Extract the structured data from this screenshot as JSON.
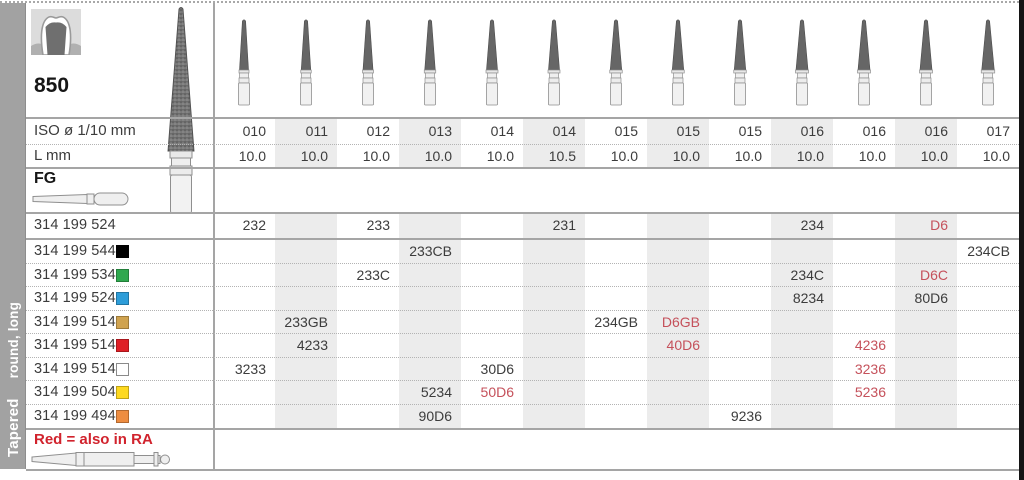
{
  "product": {
    "number": "850"
  },
  "sidebar": {
    "category": "Tapered",
    "subcategory": "round, long"
  },
  "labels": {
    "iso": "ISO ø 1/10 mm",
    "length": "L mm",
    "shank": "FG"
  },
  "columns": [
    {
      "iso": "010",
      "l": "10.0",
      "shaded": false
    },
    {
      "iso": "011",
      "l": "10.0",
      "shaded": true
    },
    {
      "iso": "012",
      "l": "10.0",
      "shaded": false
    },
    {
      "iso": "013",
      "l": "10.0",
      "shaded": true
    },
    {
      "iso": "014",
      "l": "10.0",
      "shaded": false
    },
    {
      "iso": "014",
      "l": "10.5",
      "shaded": true
    },
    {
      "iso": "015",
      "l": "10.0",
      "shaded": false
    },
    {
      "iso": "015",
      "l": "10.0",
      "shaded": true
    },
    {
      "iso": "015",
      "l": "10.0",
      "shaded": false
    },
    {
      "iso": "016",
      "l": "10.0",
      "shaded": true
    },
    {
      "iso": "016",
      "l": "10.0",
      "shaded": false
    },
    {
      "iso": "016",
      "l": "10.0",
      "shaded": true
    },
    {
      "iso": "017",
      "l": "10.0",
      "shaded": false
    }
  ],
  "rows": [
    {
      "code": "314 199 524",
      "chip": null,
      "cells": [
        {
          "col": 1,
          "text": "232"
        },
        {
          "col": 3,
          "text": "233"
        },
        {
          "col": 6,
          "text": "231"
        },
        {
          "col": 10,
          "text": "234"
        },
        {
          "col": 12,
          "text": "D6",
          "red": true
        }
      ]
    },
    {
      "code": "314 199 544",
      "chip": "#000000",
      "cells": [
        {
          "col": 4,
          "text": "233CB"
        },
        {
          "col": 13,
          "text": "234CB"
        }
      ]
    },
    {
      "code": "314 199 534",
      "chip": "#2fa84e",
      "cells": [
        {
          "col": 3,
          "text": "233C"
        },
        {
          "col": 10,
          "text": "234C"
        },
        {
          "col": 12,
          "text": "D6C",
          "red": true
        }
      ]
    },
    {
      "code": "314 199 524",
      "chip": "#2d9dd9",
      "cells": [
        {
          "col": 10,
          "text": "8234"
        },
        {
          "col": 12,
          "text": "80D6"
        }
      ]
    },
    {
      "code": "314 199 514",
      "chip": "#d0a34f",
      "cells": [
        {
          "col": 2,
          "text": "233GB"
        },
        {
          "col": 7,
          "text": "234GB"
        },
        {
          "col": 8,
          "text": "D6GB",
          "red": true
        }
      ]
    },
    {
      "code": "314 199 514",
      "chip": "#df1f26",
      "cells": [
        {
          "col": 2,
          "text": "4233"
        },
        {
          "col": 8,
          "text": "40D6",
          "red": true
        },
        {
          "col": 11,
          "text": "4236",
          "red": true
        }
      ]
    },
    {
      "code": "314 199 514",
      "chip": "#ffffff",
      "cells": [
        {
          "col": 1,
          "text": "3233"
        },
        {
          "col": 5,
          "text": "30D6"
        },
        {
          "col": 11,
          "text": "3236",
          "red": true
        }
      ]
    },
    {
      "code": "314 199 504",
      "chip": "#fed91f",
      "cells": [
        {
          "col": 4,
          "text": "5234"
        },
        {
          "col": 5,
          "text": "50D6",
          "red": true
        },
        {
          "col": 11,
          "text": "5236",
          "red": true
        }
      ]
    },
    {
      "code": "314 199 494",
      "chip": "#ee8d41",
      "cells": [
        {
          "col": 4,
          "text": "90D6"
        },
        {
          "col": 9,
          "text": "9236"
        }
      ]
    }
  ],
  "footer": {
    "note": "Red = also in RA"
  },
  "icons": {
    "tooth": "crown-prep-icon",
    "large_bur": "tapered-diamond-bur-icon",
    "column_bur": "tapered-bur-icon",
    "fg_shank": "fg-shank-icon",
    "ra_shank": "ra-shank-icon"
  },
  "colors": {
    "red_value": "#c5515b",
    "note_red": "#d1232d",
    "band": "#ececec",
    "line": "#a5a5a5",
    "sidebar_bg": "#a2a2a2",
    "text": "#3c3c3c"
  }
}
